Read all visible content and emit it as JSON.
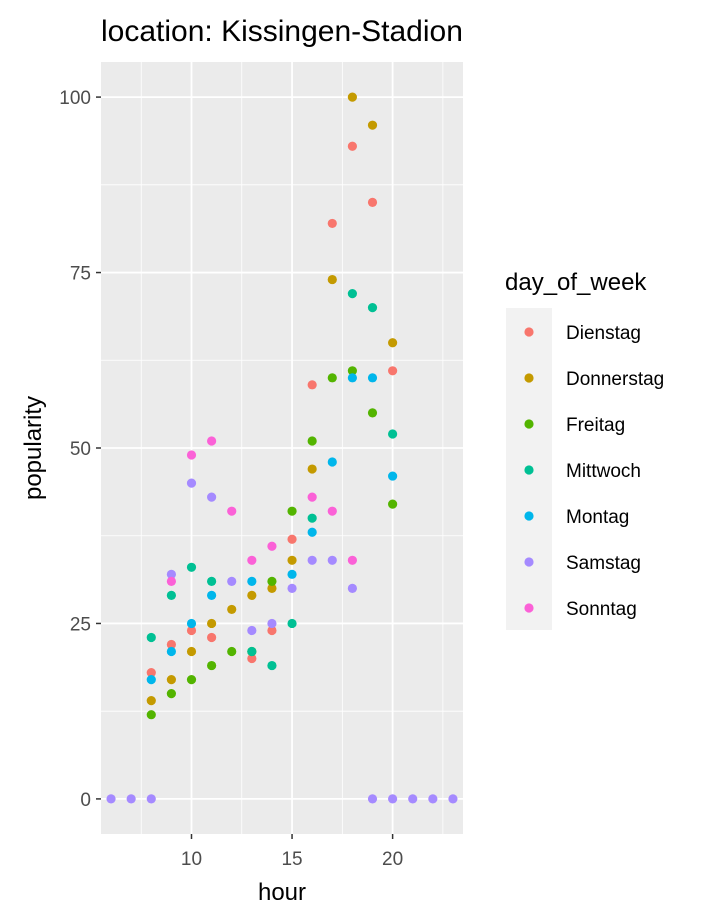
{
  "chart_data": {
    "type": "scatter",
    "title": "location: Kissingen-Stadion",
    "xlabel": "hour",
    "ylabel": "popularity",
    "xlim": [
      5.5,
      23.5
    ],
    "ylim": [
      -5,
      105
    ],
    "x_ticks": [
      10,
      15,
      20
    ],
    "y_ticks": [
      0,
      25,
      50,
      75,
      100
    ],
    "x_minor": [
      7.5,
      12.5,
      17.5,
      22.5
    ],
    "y_minor": [
      12.5,
      37.5,
      62.5,
      87.5
    ],
    "grid": true,
    "legend": {
      "title": "day_of_week",
      "position": "right"
    },
    "series": [
      {
        "name": "Dienstag",
        "color": "#F8766D",
        "points": [
          [
            8,
            18
          ],
          [
            9,
            22
          ],
          [
            10,
            24
          ],
          [
            11,
            23
          ],
          [
            13,
            20
          ],
          [
            14,
            24
          ],
          [
            15,
            37
          ],
          [
            16,
            59
          ],
          [
            17,
            82
          ],
          [
            18,
            93
          ],
          [
            19,
            85
          ],
          [
            20,
            61
          ]
        ]
      },
      {
        "name": "Donnerstag",
        "color": "#C49A00",
        "points": [
          [
            8,
            14
          ],
          [
            9,
            17
          ],
          [
            10,
            21
          ],
          [
            11,
            25
          ],
          [
            12,
            27
          ],
          [
            13,
            29
          ],
          [
            14,
            30
          ],
          [
            15,
            34
          ],
          [
            16,
            47
          ],
          [
            17,
            74
          ],
          [
            18,
            100
          ],
          [
            19,
            96
          ],
          [
            20,
            65
          ]
        ]
      },
      {
        "name": "Freitag",
        "color": "#53B400",
        "points": [
          [
            8,
            12
          ],
          [
            9,
            15
          ],
          [
            10,
            17
          ],
          [
            11,
            19
          ],
          [
            12,
            21
          ],
          [
            13,
            21
          ],
          [
            14,
            31
          ],
          [
            15,
            41
          ],
          [
            16,
            51
          ],
          [
            17,
            60
          ],
          [
            18,
            61
          ],
          [
            19,
            55
          ],
          [
            20,
            42
          ]
        ]
      },
      {
        "name": "Mittwoch",
        "color": "#00C094",
        "points": [
          [
            8,
            23
          ],
          [
            9,
            29
          ],
          [
            10,
            33
          ],
          [
            11,
            31
          ],
          [
            13,
            21
          ],
          [
            14,
            19
          ],
          [
            15,
            25
          ],
          [
            16,
            40
          ],
          [
            18,
            72
          ],
          [
            19,
            70
          ],
          [
            20,
            52
          ]
        ]
      },
      {
        "name": "Montag",
        "color": "#00B6EB",
        "points": [
          [
            8,
            17
          ],
          [
            9,
            21
          ],
          [
            10,
            25
          ],
          [
            11,
            29
          ],
          [
            13,
            31
          ],
          [
            15,
            32
          ],
          [
            16,
            38
          ],
          [
            17,
            48
          ],
          [
            18,
            60
          ],
          [
            19,
            60
          ],
          [
            20,
            46
          ]
        ]
      },
      {
        "name": "Samstag",
        "color": "#A58AFF",
        "points": [
          [
            6,
            0
          ],
          [
            7,
            0
          ],
          [
            8,
            0
          ],
          [
            9,
            32
          ],
          [
            10,
            45
          ],
          [
            11,
            43
          ],
          [
            12,
            31
          ],
          [
            13,
            24
          ],
          [
            14,
            25
          ],
          [
            15,
            30
          ],
          [
            16,
            34
          ],
          [
            17,
            34
          ],
          [
            18,
            30
          ],
          [
            19,
            0
          ],
          [
            20,
            0
          ],
          [
            21,
            0
          ],
          [
            22,
            0
          ],
          [
            23,
            0
          ]
        ]
      },
      {
        "name": "Sonntag",
        "color": "#FB61D7",
        "points": [
          [
            9,
            31
          ],
          [
            10,
            49
          ],
          [
            11,
            51
          ],
          [
            12,
            41
          ],
          [
            13,
            34
          ],
          [
            14,
            36
          ],
          [
            16,
            43
          ],
          [
            17,
            41
          ],
          [
            18,
            34
          ]
        ]
      }
    ]
  }
}
